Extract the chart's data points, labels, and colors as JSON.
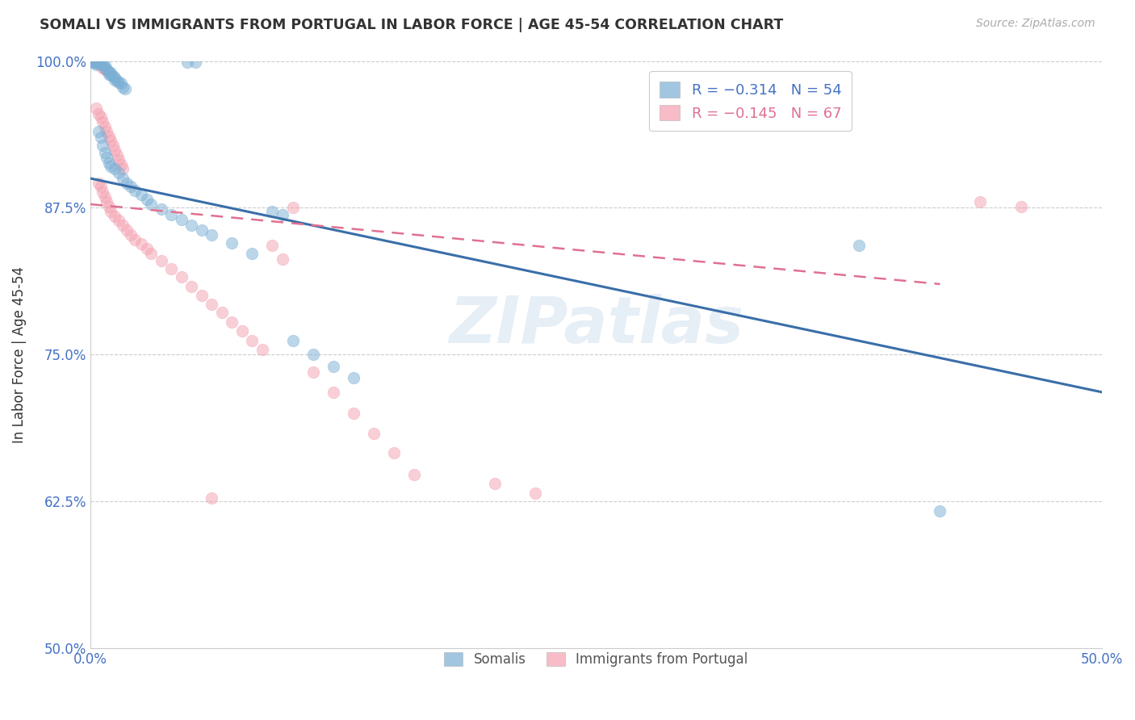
{
  "title": "SOMALI VS IMMIGRANTS FROM PORTUGAL IN LABOR FORCE | AGE 45-54 CORRELATION CHART",
  "source": "Source: ZipAtlas.com",
  "ylabel": "In Labor Force | Age 45-54",
  "xlim": [
    0.0,
    0.5
  ],
  "ylim": [
    0.5,
    1.0
  ],
  "xtick_positions": [
    0.0,
    0.1,
    0.2,
    0.3,
    0.4,
    0.5
  ],
  "xtick_labels": [
    "0.0%",
    "",
    "",
    "",
    "",
    "50.0%"
  ],
  "ytick_positions": [
    0.5,
    0.625,
    0.75,
    0.875,
    1.0
  ],
  "ytick_labels": [
    "50.0%",
    "62.5%",
    "75.0%",
    "87.5%",
    "100.0%"
  ],
  "legend_label1": "Somalis",
  "legend_label2": "Immigrants from Portugal",
  "watermark": "ZIPatlas",
  "blue_color": "#7bafd4",
  "pink_color": "#f4a0b0",
  "blue_line_color": "#3a6ea8",
  "pink_line_color": "#e07090",
  "blue_line": {
    "x0": 0.0,
    "y0": 0.9,
    "x1": 0.5,
    "y1": 0.718
  },
  "pink_line": {
    "x0": 0.0,
    "y0": 0.878,
    "x1": 0.42,
    "y1": 0.81
  },
  "blue_scatter": [
    [
      0.001,
      0.999
    ],
    [
      0.002,
      0.999
    ],
    [
      0.003,
      0.998
    ],
    [
      0.003,
      0.997
    ],
    [
      0.004,
      0.999
    ],
    [
      0.005,
      0.998
    ],
    [
      0.006,
      0.997
    ],
    [
      0.007,
      0.996
    ],
    [
      0.007,
      0.994
    ],
    [
      0.008,
      0.993
    ],
    [
      0.009,
      0.991
    ],
    [
      0.009,
      0.989
    ],
    [
      0.01,
      0.99
    ],
    [
      0.01,
      0.988
    ],
    [
      0.011,
      0.987
    ],
    [
      0.012,
      0.986
    ],
    [
      0.012,
      0.984
    ],
    [
      0.013,
      0.983
    ],
    [
      0.014,
      0.982
    ],
    [
      0.015,
      0.981
    ],
    [
      0.016,
      0.978
    ],
    [
      0.017,
      0.976
    ],
    [
      0.004,
      0.94
    ],
    [
      0.005,
      0.935
    ],
    [
      0.006,
      0.928
    ],
    [
      0.007,
      0.922
    ],
    [
      0.008,
      0.918
    ],
    [
      0.009,
      0.913
    ],
    [
      0.01,
      0.91
    ],
    [
      0.012,
      0.908
    ],
    [
      0.014,
      0.905
    ],
    [
      0.016,
      0.9
    ],
    [
      0.018,
      0.896
    ],
    [
      0.02,
      0.893
    ],
    [
      0.022,
      0.89
    ],
    [
      0.025,
      0.886
    ],
    [
      0.028,
      0.882
    ],
    [
      0.03,
      0.878
    ],
    [
      0.035,
      0.874
    ],
    [
      0.04,
      0.869
    ],
    [
      0.045,
      0.865
    ],
    [
      0.05,
      0.86
    ],
    [
      0.055,
      0.856
    ],
    [
      0.06,
      0.852
    ],
    [
      0.07,
      0.845
    ],
    [
      0.08,
      0.836
    ],
    [
      0.09,
      0.872
    ],
    [
      0.095,
      0.869
    ],
    [
      0.1,
      0.762
    ],
    [
      0.11,
      0.75
    ],
    [
      0.12,
      0.74
    ],
    [
      0.13,
      0.73
    ],
    [
      0.38,
      0.843
    ],
    [
      0.42,
      0.617
    ],
    [
      0.048,
      0.999
    ],
    [
      0.052,
      0.999
    ]
  ],
  "pink_scatter": [
    [
      0.003,
      0.999
    ],
    [
      0.004,
      0.998
    ],
    [
      0.005,
      0.996
    ],
    [
      0.006,
      0.994
    ],
    [
      0.007,
      0.993
    ],
    [
      0.008,
      0.992
    ],
    [
      0.003,
      0.96
    ],
    [
      0.004,
      0.955
    ],
    [
      0.005,
      0.952
    ],
    [
      0.006,
      0.948
    ],
    [
      0.007,
      0.944
    ],
    [
      0.008,
      0.94
    ],
    [
      0.009,
      0.936
    ],
    [
      0.01,
      0.932
    ],
    [
      0.011,
      0.928
    ],
    [
      0.012,
      0.924
    ],
    [
      0.013,
      0.92
    ],
    [
      0.014,
      0.916
    ],
    [
      0.015,
      0.912
    ],
    [
      0.016,
      0.908
    ],
    [
      0.004,
      0.896
    ],
    [
      0.005,
      0.893
    ],
    [
      0.006,
      0.888
    ],
    [
      0.007,
      0.884
    ],
    [
      0.008,
      0.88
    ],
    [
      0.009,
      0.876
    ],
    [
      0.01,
      0.872
    ],
    [
      0.012,
      0.868
    ],
    [
      0.014,
      0.864
    ],
    [
      0.016,
      0.86
    ],
    [
      0.018,
      0.856
    ],
    [
      0.02,
      0.852
    ],
    [
      0.022,
      0.848
    ],
    [
      0.025,
      0.844
    ],
    [
      0.028,
      0.84
    ],
    [
      0.03,
      0.836
    ],
    [
      0.035,
      0.83
    ],
    [
      0.04,
      0.823
    ],
    [
      0.045,
      0.816
    ],
    [
      0.05,
      0.808
    ],
    [
      0.055,
      0.8
    ],
    [
      0.06,
      0.793
    ],
    [
      0.065,
      0.786
    ],
    [
      0.07,
      0.778
    ],
    [
      0.075,
      0.77
    ],
    [
      0.08,
      0.762
    ],
    [
      0.085,
      0.754
    ],
    [
      0.09,
      0.843
    ],
    [
      0.1,
      0.875
    ],
    [
      0.095,
      0.831
    ],
    [
      0.11,
      0.735
    ],
    [
      0.12,
      0.718
    ],
    [
      0.13,
      0.7
    ],
    [
      0.14,
      0.683
    ],
    [
      0.15,
      0.666
    ],
    [
      0.16,
      0.648
    ],
    [
      0.2,
      0.64
    ],
    [
      0.22,
      0.632
    ],
    [
      0.06,
      0.628
    ],
    [
      0.44,
      0.88
    ],
    [
      0.46,
      0.876
    ]
  ]
}
